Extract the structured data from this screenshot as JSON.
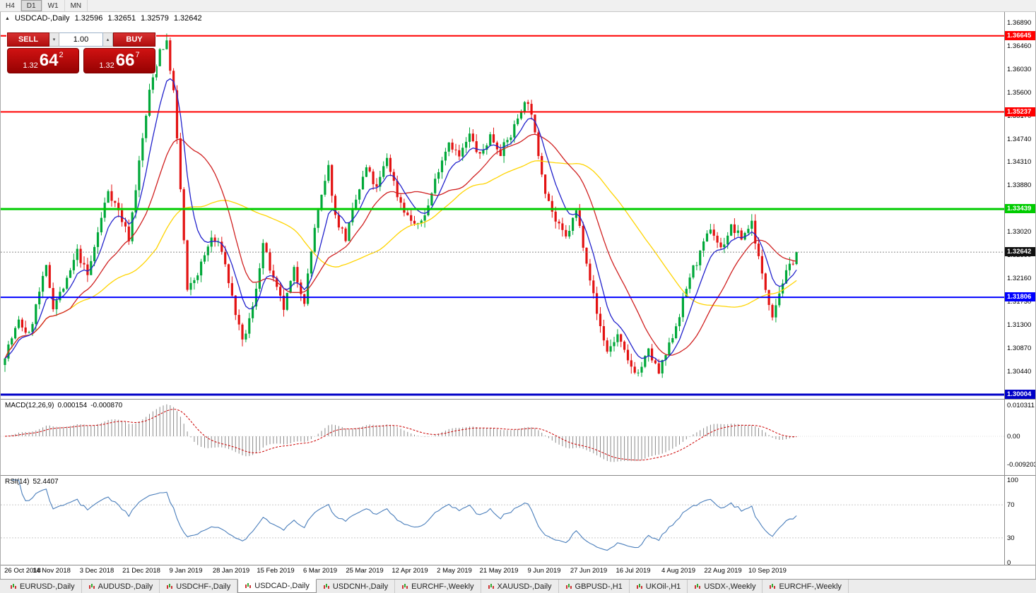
{
  "toolbar": {
    "timeframes": [
      "H4",
      "D1",
      "W1",
      "MN"
    ],
    "active": "D1"
  },
  "chart": {
    "symbol": "USDCAD-,Daily",
    "open": "1.32596",
    "high": "1.32651",
    "low": "1.32579",
    "close": "1.32642"
  },
  "trade_panel": {
    "sell_label": "SELL",
    "buy_label": "BUY",
    "volume": "1.00",
    "sell_price": {
      "base": "1.32",
      "big": "64",
      "sup": "2"
    },
    "buy_price": {
      "base": "1.32",
      "big": "66",
      "sup": "7"
    }
  },
  "price_axis": {
    "start": 1.3001,
    "step": 0.0043,
    "count": 17
  },
  "levels": [
    {
      "price": 1.36645,
      "label": "1.36645",
      "color": "#ff0000",
      "width": 2
    },
    {
      "price": 1.35237,
      "label": "1.35237",
      "color": "#ff0000",
      "width": 2
    },
    {
      "price": 1.33439,
      "label": "1.33439",
      "color": "#00cc00",
      "width": 3
    },
    {
      "price": 1.31806,
      "label": "1.31806",
      "color": "#0000ff",
      "width": 2
    },
    {
      "price": 1.30004,
      "label": "1.30004",
      "color": "#0000c8",
      "width": 3
    }
  ],
  "current_price": {
    "value": 1.32642,
    "label": "1.32642"
  },
  "macd": {
    "name": "MACD(12,26,9)",
    "value1": "0.000154",
    "value2": "-0.000870",
    "axis": [
      "0.010311",
      "0.00",
      "-0.009203"
    ]
  },
  "rsi": {
    "name": "RSI(14)",
    "value": "52.4407",
    "axis": [
      "100",
      "70",
      "30",
      "0"
    ],
    "levels": [
      70,
      30
    ]
  },
  "date_axis": [
    "26 Oct 2018",
    "14 Nov 2018",
    "3 Dec 2018",
    "21 Dec 2018",
    "9 Jan 2019",
    "28 Jan 2019",
    "15 Feb 2019",
    "6 Mar 2019",
    "25 Mar 2019",
    "12 Apr 2019",
    "2 May 2019",
    "21 May 2019",
    "9 Jun 2019",
    "27 Jun 2019",
    "16 Jul 2019",
    "4 Aug 2019",
    "22 Aug 2019",
    "10 Sep 2019"
  ],
  "tabs": [
    "EURUSD-,Daily",
    "AUDUSD-,Daily",
    "USDCHF-,Daily",
    "USDCAD-,Daily",
    "USDCNH-,Daily",
    "EURCHF-,Weekly",
    "XAUUSD-,Daily",
    "GBPUSD-,H1",
    "UKOil-,H1",
    "USDX-,Weekly",
    "EURCHF-,Weekly"
  ],
  "active_tab": 3,
  "chart_data": {
    "type": "candlestick",
    "symbol": "USDCAD",
    "timeframe": "Daily",
    "count": 231,
    "seed": 7,
    "noise": 0.0016,
    "wick": 0.0013,
    "last_close": 1.32642,
    "price_range": [
      1.3001,
      1.3689
    ],
    "anchors": [
      [
        0,
        1.3075
      ],
      [
        4,
        1.3135
      ],
      [
        7,
        1.311
      ],
      [
        10,
        1.319
      ],
      [
        12,
        1.3235
      ],
      [
        14,
        1.3165
      ],
      [
        18,
        1.321
      ],
      [
        21,
        1.3265
      ],
      [
        24,
        1.322
      ],
      [
        27,
        1.33
      ],
      [
        30,
        1.338
      ],
      [
        33,
        1.334
      ],
      [
        36,
        1.329
      ],
      [
        39,
        1.343
      ],
      [
        42,
        1.356
      ],
      [
        45,
        1.364
      ],
      [
        47,
        1.365
      ],
      [
        49,
        1.356
      ],
      [
        51,
        1.338
      ],
      [
        53,
        1.319
      ],
      [
        56,
        1.3225
      ],
      [
        60,
        1.329
      ],
      [
        63,
        1.327
      ],
      [
        66,
        1.318
      ],
      [
        69,
        1.3095
      ],
      [
        72,
        1.316
      ],
      [
        75,
        1.328
      ],
      [
        78,
        1.321
      ],
      [
        81,
        1.316
      ],
      [
        84,
        1.323
      ],
      [
        87,
        1.3175
      ],
      [
        90,
        1.331
      ],
      [
        92,
        1.3365
      ],
      [
        94,
        1.342
      ],
      [
        96,
        1.333
      ],
      [
        99,
        1.329
      ],
      [
        102,
        1.336
      ],
      [
        105,
        1.342
      ],
      [
        108,
        1.338
      ],
      [
        111,
        1.344
      ],
      [
        114,
        1.337
      ],
      [
        117,
        1.333
      ],
      [
        120,
        1.331
      ],
      [
        123,
        1.335
      ],
      [
        126,
        1.342
      ],
      [
        129,
        1.347
      ],
      [
        132,
        1.344
      ],
      [
        135,
        1.348
      ],
      [
        138,
        1.344
      ],
      [
        141,
        1.348
      ],
      [
        144,
        1.345
      ],
      [
        147,
        1.348
      ],
      [
        150,
        1.353
      ],
      [
        152,
        1.3545
      ],
      [
        154,
        1.348
      ],
      [
        157,
        1.338
      ],
      [
        160,
        1.332
      ],
      [
        163,
        1.329
      ],
      [
        166,
        1.334
      ],
      [
        169,
        1.325
      ],
      [
        172,
        1.315
      ],
      [
        175,
        1.308
      ],
      [
        178,
        1.311
      ],
      [
        181,
        1.306
      ],
      [
        184,
        1.304
      ],
      [
        187,
        1.308
      ],
      [
        190,
        1.304
      ],
      [
        193,
        1.309
      ],
      [
        196,
        1.315
      ],
      [
        199,
        1.322
      ],
      [
        202,
        1.326
      ],
      [
        205,
        1.331
      ],
      [
        208,
        1.327
      ],
      [
        211,
        1.331
      ],
      [
        214,
        1.329
      ],
      [
        217,
        1.332
      ],
      [
        220,
        1.322
      ],
      [
        223,
        1.315
      ],
      [
        226,
        1.321
      ],
      [
        229,
        1.325
      ],
      [
        230,
        1.32642
      ]
    ],
    "moving_averages": [
      {
        "period": 45,
        "type": "sma",
        "color": "#ffd400"
      },
      {
        "period": 20,
        "type": "sma",
        "color": "#d02020"
      },
      {
        "period": 8,
        "type": "ema",
        "color": "#2222cc"
      }
    ],
    "indicators": [
      {
        "name": "MACD",
        "params": "12,26,9"
      },
      {
        "name": "RSI",
        "params": "14"
      }
    ],
    "colors": {
      "up": "#00a839",
      "down": "#e31212"
    }
  }
}
